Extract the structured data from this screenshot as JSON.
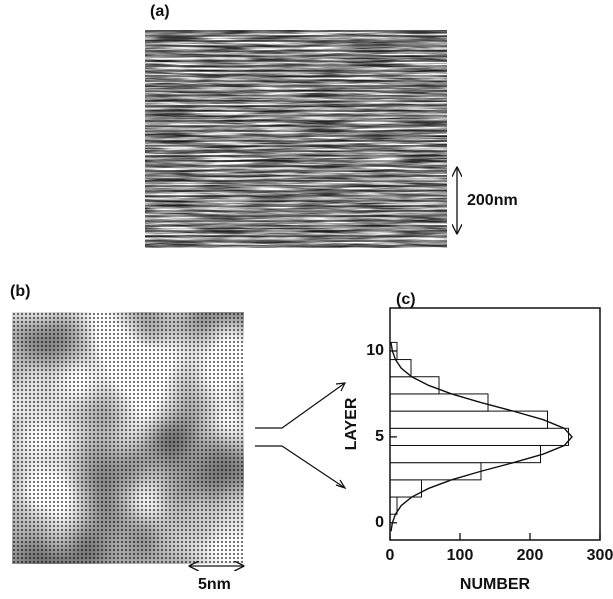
{
  "panels": {
    "a": {
      "label": "(a)",
      "scale_bar": "200nm"
    },
    "b": {
      "label": "(b)",
      "scale_bar": "5nm"
    }
  },
  "chart_data": {
    "type": "histogram",
    "orientation": "horizontal",
    "label": "(c)",
    "x_label": "NUMBER",
    "y_label": "LAYER",
    "bins": [
      0.5,
      1.5,
      2.5,
      3.5,
      4.5,
      5.5,
      6.5,
      7.5,
      8.5,
      9.5,
      10.5
    ],
    "counts": [
      10,
      45,
      130,
      215,
      255,
      225,
      140,
      70,
      30,
      10
    ],
    "color": "#ffffff",
    "xlim": [
      0,
      300
    ],
    "xticks": [
      0,
      100,
      200,
      300
    ],
    "ylim": [
      -1,
      12.5
    ],
    "yticks": [
      0,
      5,
      10
    ],
    "fit": {
      "layer": [
        -0.5,
        0,
        0.5,
        1,
        1.5,
        2,
        2.5,
        3,
        3.5,
        4,
        4.5,
        5,
        5.5,
        6,
        6.5,
        7,
        7.5,
        8,
        8.5,
        9,
        9.5,
        10,
        10.5
      ],
      "number": [
        1.4,
        3.4,
        7.8,
        16,
        31,
        55,
        88,
        130,
        176,
        219,
        249,
        260,
        249,
        219,
        176,
        130,
        88,
        55,
        31,
        16,
        7.8,
        3.4,
        1.4
      ]
    }
  }
}
